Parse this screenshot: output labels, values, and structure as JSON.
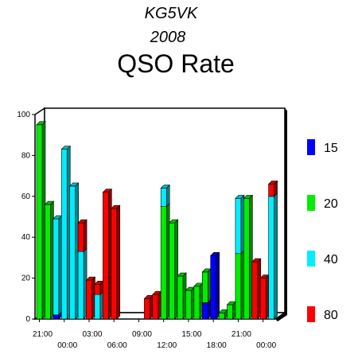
{
  "chart_data": {
    "type": "bar",
    "title_lines": [
      "KG5VK",
      "2008",
      "QSO Rate"
    ],
    "ylim": [
      0,
      100
    ],
    "yticks": [
      0,
      20,
      40,
      60,
      80,
      100
    ],
    "x_labels": [
      {
        "label": "21:00",
        "hour": 0,
        "row": 0
      },
      {
        "label": "00:00",
        "hour": 3,
        "row": 1
      },
      {
        "label": "03:00",
        "hour": 6,
        "row": 0
      },
      {
        "label": "06:00",
        "hour": 9,
        "row": 1
      },
      {
        "label": "09:00",
        "hour": 12,
        "row": 0
      },
      {
        "label": "12:00",
        "hour": 15,
        "row": 1
      },
      {
        "label": "15:00",
        "hour": 18,
        "row": 0
      },
      {
        "label": "18:00",
        "hour": 21,
        "row": 1
      },
      {
        "label": "21:00",
        "hour": 24,
        "row": 0
      },
      {
        "label": "00:00",
        "hour": 27,
        "row": 1
      }
    ],
    "hours": 29,
    "stack_order": [
      "15",
      "20",
      "40",
      "80"
    ],
    "series": [
      {
        "name": "15",
        "color": "#0000ff",
        "values": [
          0,
          0,
          2,
          0,
          0,
          0,
          0,
          0,
          0,
          0,
          0,
          0,
          0,
          0,
          0,
          0,
          0,
          0,
          0,
          0,
          8,
          31,
          0,
          0,
          0,
          0,
          0,
          0,
          0
        ]
      },
      {
        "name": "20",
        "color": "#00ee00",
        "values": [
          95,
          56,
          0,
          0,
          0,
          0,
          0,
          0,
          0,
          0,
          0,
          0,
          0,
          0,
          0,
          55,
          47,
          21,
          14,
          16,
          15,
          0,
          3,
          7,
          32,
          59,
          0,
          0,
          0
        ]
      },
      {
        "name": "40",
        "color": "#00eeff",
        "values": [
          0,
          0,
          47,
          83,
          65,
          33,
          0,
          12,
          0,
          0,
          0,
          0,
          0,
          0,
          0,
          9,
          0,
          0,
          0,
          0,
          0,
          0,
          0,
          0,
          27,
          0,
          0,
          0,
          60
        ]
      },
      {
        "name": "80",
        "color": "#ff0000",
        "values": [
          0,
          0,
          0,
          0,
          0,
          14,
          19,
          5,
          62,
          54,
          0,
          0,
          0,
          10,
          12,
          0,
          0,
          0,
          0,
          0,
          0,
          0,
          0,
          0,
          0,
          0,
          28,
          20,
          6
        ]
      }
    ],
    "last_red": 80,
    "legend_position": "right",
    "grid": false
  }
}
